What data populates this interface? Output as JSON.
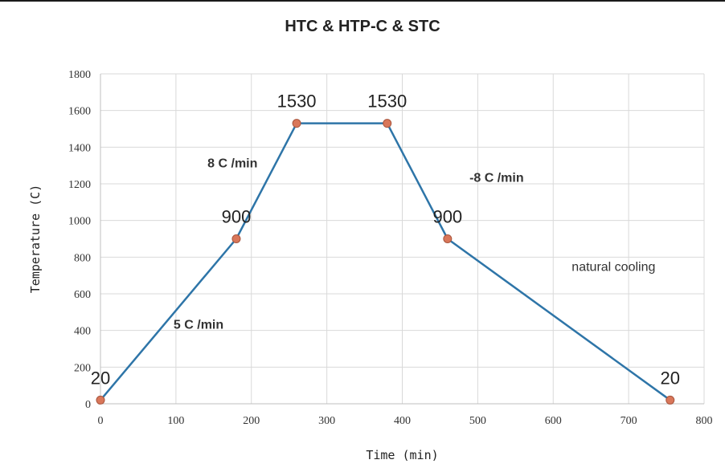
{
  "chart_data": {
    "type": "line",
    "title": "HTC & HTP-C & STC",
    "xlabel": "Time (min)",
    "ylabel": "Temperature (C)",
    "xlim": [
      0,
      800
    ],
    "ylim": [
      0,
      1800
    ],
    "x_ticks": [
      0,
      100,
      200,
      300,
      400,
      500,
      600,
      700,
      800
    ],
    "y_ticks": [
      0,
      200,
      400,
      600,
      800,
      1000,
      1200,
      1400,
      1600,
      1800
    ],
    "grid": true,
    "series": [
      {
        "points": [
          {
            "x": 0,
            "y": 20
          },
          {
            "x": 180,
            "y": 900
          },
          {
            "x": 260,
            "y": 1530
          },
          {
            "x": 380,
            "y": 1530
          },
          {
            "x": 460,
            "y": 900
          },
          {
            "x": 755,
            "y": 20
          }
        ],
        "line_color": "#2e75a8",
        "marker_color": "#d9775a"
      }
    ],
    "point_labels": [
      {
        "text": "20",
        "x": 0,
        "y": 20
      },
      {
        "text": "900",
        "x": 180,
        "y": 900
      },
      {
        "text": "1530",
        "x": 260,
        "y": 1530
      },
      {
        "text": "1530",
        "x": 380,
        "y": 1530
      },
      {
        "text": "900",
        "x": 460,
        "y": 900
      },
      {
        "text": "20",
        "x": 755,
        "y": 20
      }
    ],
    "annotations": [
      {
        "text": "5 C /min",
        "x": 130,
        "y": 410,
        "style": "rate"
      },
      {
        "text": "8 C /min",
        "x": 175,
        "y": 1290,
        "style": "rate"
      },
      {
        "text": "-8 C /min",
        "x": 525,
        "y": 1210,
        "style": "rate"
      },
      {
        "text": "natural cooling",
        "x": 680,
        "y": 725,
        "style": "note"
      }
    ]
  }
}
